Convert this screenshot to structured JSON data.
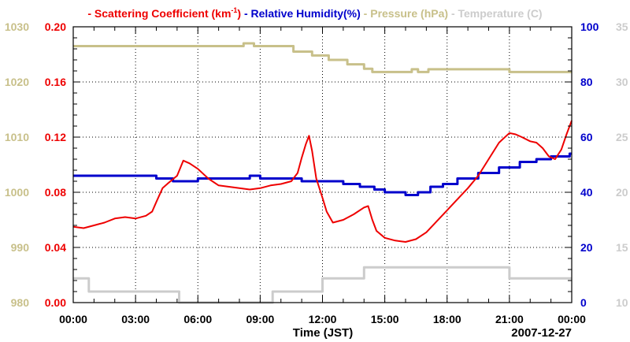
{
  "chart_data": {
    "type": "line",
    "title": "",
    "xlabel": "Time (JST)",
    "date_label": "2007-12-27",
    "x_range_hours": [
      0,
      24
    ],
    "x_ticks": [
      "00:00",
      "03:00",
      "06:00",
      "09:00",
      "12:00",
      "15:00",
      "18:00",
      "21:00",
      "00:00"
    ],
    "legend": [
      {
        "text": "Scattering Coefficient (km",
        "sup": "-1",
        "after": ")",
        "color": "#ee0000"
      },
      {
        "text": "Relative Humidity(%)",
        "sup": "",
        "after": "",
        "color": "#0000cc"
      },
      {
        "text": "Pressure (hPa)",
        "sup": "",
        "after": "",
        "color": "#c8c08a"
      },
      {
        "text": "Temperature (C)",
        "sup": "",
        "after": "",
        "color": "#cccccc"
      }
    ],
    "axes": {
      "scattering": {
        "ylim": [
          0,
          0.2
        ],
        "ticks": [
          "0.00",
          "0.04",
          "0.08",
          "0.12",
          "0.16",
          "0.20"
        ],
        "color": "#ee0000"
      },
      "pressure": {
        "ylim": [
          980,
          1030
        ],
        "ticks": [
          "980",
          "990",
          "1000",
          "1010",
          "1020",
          "1030"
        ],
        "color": "#c8c08a"
      },
      "humidity": {
        "ylim": [
          0,
          100
        ],
        "ticks": [
          "0",
          "20",
          "40",
          "60",
          "80",
          "100"
        ],
        "color": "#0000cc"
      },
      "temperature": {
        "ylim": [
          10,
          35
        ],
        "ticks": [
          "10",
          "15",
          "20",
          "25",
          "30",
          "35"
        ],
        "color": "#cccccc"
      }
    },
    "series": [
      {
        "name": "Scattering Coefficient",
        "axis": "scattering",
        "color": "#ee0000",
        "x": [
          0.0,
          0.5,
          1.0,
          1.5,
          2.0,
          2.5,
          3.0,
          3.5,
          3.8,
          4.0,
          4.3,
          4.6,
          5.0,
          5.3,
          5.6,
          6.0,
          6.5,
          7.0,
          7.5,
          8.0,
          8.5,
          9.0,
          9.5,
          10.0,
          10.5,
          10.8,
          11.0,
          11.2,
          11.35,
          11.5,
          11.7,
          12.0,
          12.2,
          12.5,
          13.0,
          13.5,
          14.0,
          14.2,
          14.4,
          14.6,
          15.0,
          15.5,
          16.0,
          16.5,
          17.0,
          17.5,
          18.0,
          18.5,
          19.0,
          19.5,
          20.0,
          20.5,
          21.0,
          21.3,
          21.6,
          22.0,
          22.3,
          22.6,
          22.9,
          23.2,
          23.5,
          23.75,
          24.0
        ],
        "values": [
          0.055,
          0.054,
          0.056,
          0.058,
          0.061,
          0.062,
          0.061,
          0.063,
          0.066,
          0.073,
          0.083,
          0.087,
          0.092,
          0.103,
          0.101,
          0.097,
          0.09,
          0.085,
          0.084,
          0.083,
          0.082,
          0.083,
          0.085,
          0.086,
          0.088,
          0.094,
          0.105,
          0.115,
          0.121,
          0.11,
          0.09,
          0.076,
          0.066,
          0.058,
          0.06,
          0.064,
          0.069,
          0.07,
          0.06,
          0.052,
          0.047,
          0.045,
          0.044,
          0.046,
          0.051,
          0.059,
          0.067,
          0.075,
          0.083,
          0.092,
          0.104,
          0.116,
          0.123,
          0.122,
          0.12,
          0.117,
          0.116,
          0.112,
          0.106,
          0.104,
          0.111,
          0.122,
          0.132
        ]
      },
      {
        "name": "Relative Humidity",
        "axis": "humidity",
        "color": "#0000cc",
        "step": true,
        "x": [
          0.0,
          4.0,
          4.8,
          6.0,
          8.0,
          8.5,
          9.0,
          10.0,
          11.0,
          12.0,
          13.0,
          13.8,
          14.5,
          15.0,
          15.5,
          16.0,
          16.6,
          17.2,
          17.8,
          18.5,
          19.5,
          20.5,
          21.5,
          22.3,
          23.0,
          23.9
        ],
        "values": [
          46,
          45,
          44,
          45,
          45,
          46,
          45,
          45,
          44,
          44,
          43,
          42,
          41,
          40,
          40,
          39,
          40,
          42,
          43,
          45,
          47,
          49,
          51,
          52,
          53,
          54
        ]
      },
      {
        "name": "Pressure",
        "axis": "pressure",
        "color": "#c8c08a",
        "step": true,
        "x": [
          0.0,
          8.2,
          8.7,
          10.0,
          10.6,
          11.5,
          12.3,
          13.2,
          14.0,
          14.4,
          15.3,
          16.3,
          16.6,
          17.1,
          21.0,
          21.4,
          24.0
        ],
        "values": [
          1026.5,
          1027.0,
          1026.5,
          1026.5,
          1025.5,
          1024.8,
          1024.0,
          1023.2,
          1022.4,
          1021.8,
          1021.8,
          1022.3,
          1021.8,
          1022.3,
          1021.8,
          1021.8,
          1021.8
        ]
      },
      {
        "name": "Temperature",
        "axis": "temperature",
        "color": "#cccccc",
        "step": true,
        "x": [
          0.0,
          0.75,
          5.1,
          9.6,
          12.0,
          14.0,
          21.0,
          24.0
        ],
        "values": [
          12.2,
          11.0,
          10.0,
          11.0,
          12.2,
          13.2,
          12.2,
          12.2
        ]
      }
    ]
  }
}
